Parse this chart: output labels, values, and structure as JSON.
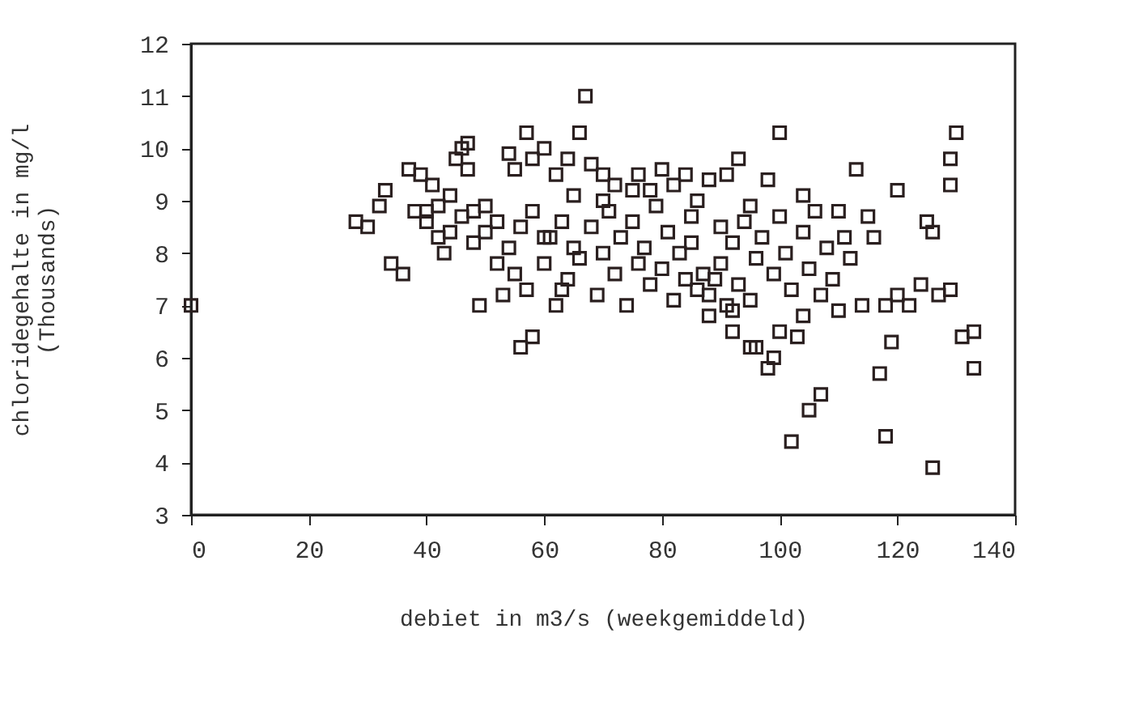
{
  "chart_data": {
    "type": "scatter",
    "xlabel": "debiet in m3/s (weekgemiddeld)",
    "ylabel": "chloridegehalte in mg/l\n(Thousands)",
    "xlim": [
      0,
      140
    ],
    "xticks": [
      0,
      20,
      40,
      60,
      80,
      100,
      120,
      140
    ],
    "ylim": [
      3,
      12
    ],
    "yticks": [
      3,
      4,
      5,
      6,
      7,
      8,
      9,
      10,
      11,
      12
    ],
    "grid": false,
    "marker": "square",
    "series": [
      {
        "color": "#2a1f1f",
        "x": [
          0,
          28,
          30,
          32,
          33,
          34,
          36,
          37,
          38,
          39,
          40,
          41,
          42,
          43,
          44,
          45,
          46,
          47,
          47,
          48,
          49,
          50,
          52,
          54,
          55,
          56,
          57,
          58,
          58,
          60,
          62,
          64,
          66,
          67,
          68,
          70,
          72,
          75,
          76,
          80,
          82,
          84,
          86,
          88,
          91,
          93,
          98,
          100,
          104,
          113,
          130,
          129,
          129,
          120,
          125,
          126,
          115,
          110,
          127,
          129,
          131,
          133,
          133,
          118,
          117,
          119,
          107,
          105,
          102,
          118,
          126,
          98,
          95,
          92,
          100,
          40,
          42,
          44,
          46,
          48,
          50,
          52,
          54,
          55,
          56,
          57,
          58,
          60,
          61,
          62,
          63,
          64,
          65,
          66,
          68,
          69,
          70,
          71,
          72,
          73,
          74,
          75,
          76,
          77,
          78,
          79,
          80,
          81,
          82,
          83,
          84,
          85,
          86,
          87,
          88,
          89,
          90,
          91,
          92,
          93,
          94,
          95,
          96,
          97,
          99,
          101,
          102,
          103,
          104,
          105,
          106,
          107,
          108,
          109,
          110,
          111,
          112,
          114,
          116,
          120,
          122,
          124,
          60,
          65,
          70,
          78,
          85,
          90,
          95,
          100,
          53,
          63,
          88,
          92,
          96,
          99,
          104
        ],
        "values": [
          7.0,
          8.6,
          8.5,
          8.9,
          9.2,
          7.8,
          7.6,
          9.6,
          8.8,
          9.5,
          8.8,
          9.3,
          8.3,
          8.0,
          9.1,
          9.8,
          10.0,
          10.1,
          9.6,
          8.8,
          7.0,
          8.4,
          8.6,
          9.9,
          9.6,
          6.2,
          10.3,
          6.4,
          9.8,
          10.0,
          9.5,
          9.8,
          10.3,
          11.0,
          9.7,
          9.5,
          9.3,
          9.2,
          9.5,
          9.6,
          9.3,
          9.5,
          9.0,
          9.4,
          9.5,
          9.8,
          9.4,
          10.3,
          9.1,
          9.6,
          10.3,
          9.8,
          9.3,
          9.2,
          8.6,
          8.4,
          8.7,
          8.8,
          7.2,
          7.3,
          6.4,
          6.5,
          5.8,
          7.0,
          5.7,
          6.3,
          5.3,
          5.0,
          4.4,
          4.5,
          3.9,
          5.8,
          6.2,
          6.9,
          6.5,
          8.6,
          8.9,
          8.4,
          8.7,
          8.2,
          8.9,
          7.8,
          8.1,
          7.6,
          8.5,
          7.3,
          8.8,
          7.8,
          8.3,
          7.0,
          8.6,
          7.5,
          8.1,
          7.9,
          8.5,
          7.2,
          8.0,
          8.8,
          7.6,
          8.3,
          7.0,
          8.6,
          7.8,
          8.1,
          7.4,
          8.9,
          7.7,
          8.4,
          7.1,
          8.0,
          7.5,
          8.7,
          7.3,
          7.6,
          7.2,
          7.5,
          7.8,
          7.0,
          8.2,
          7.4,
          8.6,
          7.1,
          7.9,
          8.3,
          7.6,
          8.0,
          7.3,
          6.4,
          8.4,
          7.7,
          8.8,
          7.2,
          8.1,
          7.5,
          6.9,
          8.3,
          7.9,
          7.0,
          8.3,
          7.2,
          7.0,
          7.4,
          8.3,
          9.1,
          9.0,
          9.2,
          8.2,
          8.5,
          8.9,
          8.7,
          7.2,
          7.3,
          6.8,
          6.5,
          6.2,
          6.0,
          6.8
        ]
      }
    ]
  }
}
